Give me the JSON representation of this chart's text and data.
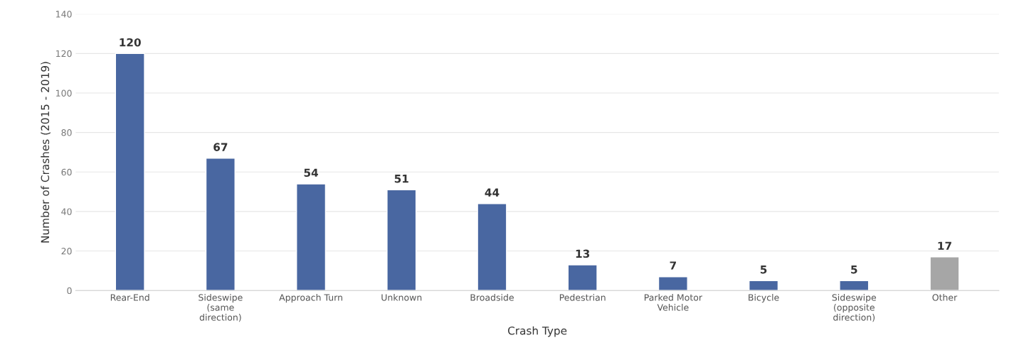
{
  "chart_data": {
    "type": "bar",
    "xlabel": "Crash Type",
    "ylabel": "Number of Crashes (2015 - 2019)",
    "categories": [
      "Rear-End",
      "Sideswipe\n(same\ndirection)",
      "Approach Turn",
      "Unknown",
      "Broadside",
      "Pedestrian",
      "Parked Motor\nVehicle",
      "Bicycle",
      "Sideswipe\n(opposite\ndirection)",
      "Other"
    ],
    "values": [
      120,
      67,
      54,
      51,
      44,
      13,
      7,
      5,
      5,
      17
    ],
    "colors": [
      "#3a62b0",
      "#3a62b0",
      "#3a62b0",
      "#3a62b0",
      "#3a62b0",
      "#3a62b0",
      "#3a62b0",
      "#3a62b0",
      "#3a62b0",
      "#a6a6a6"
    ],
    "ylim": [
      0,
      140
    ],
    "yticks": [
      0,
      20,
      40,
      60,
      80,
      100,
      120,
      140
    ],
    "grid": "y",
    "data_labels": true,
    "legend": false
  }
}
